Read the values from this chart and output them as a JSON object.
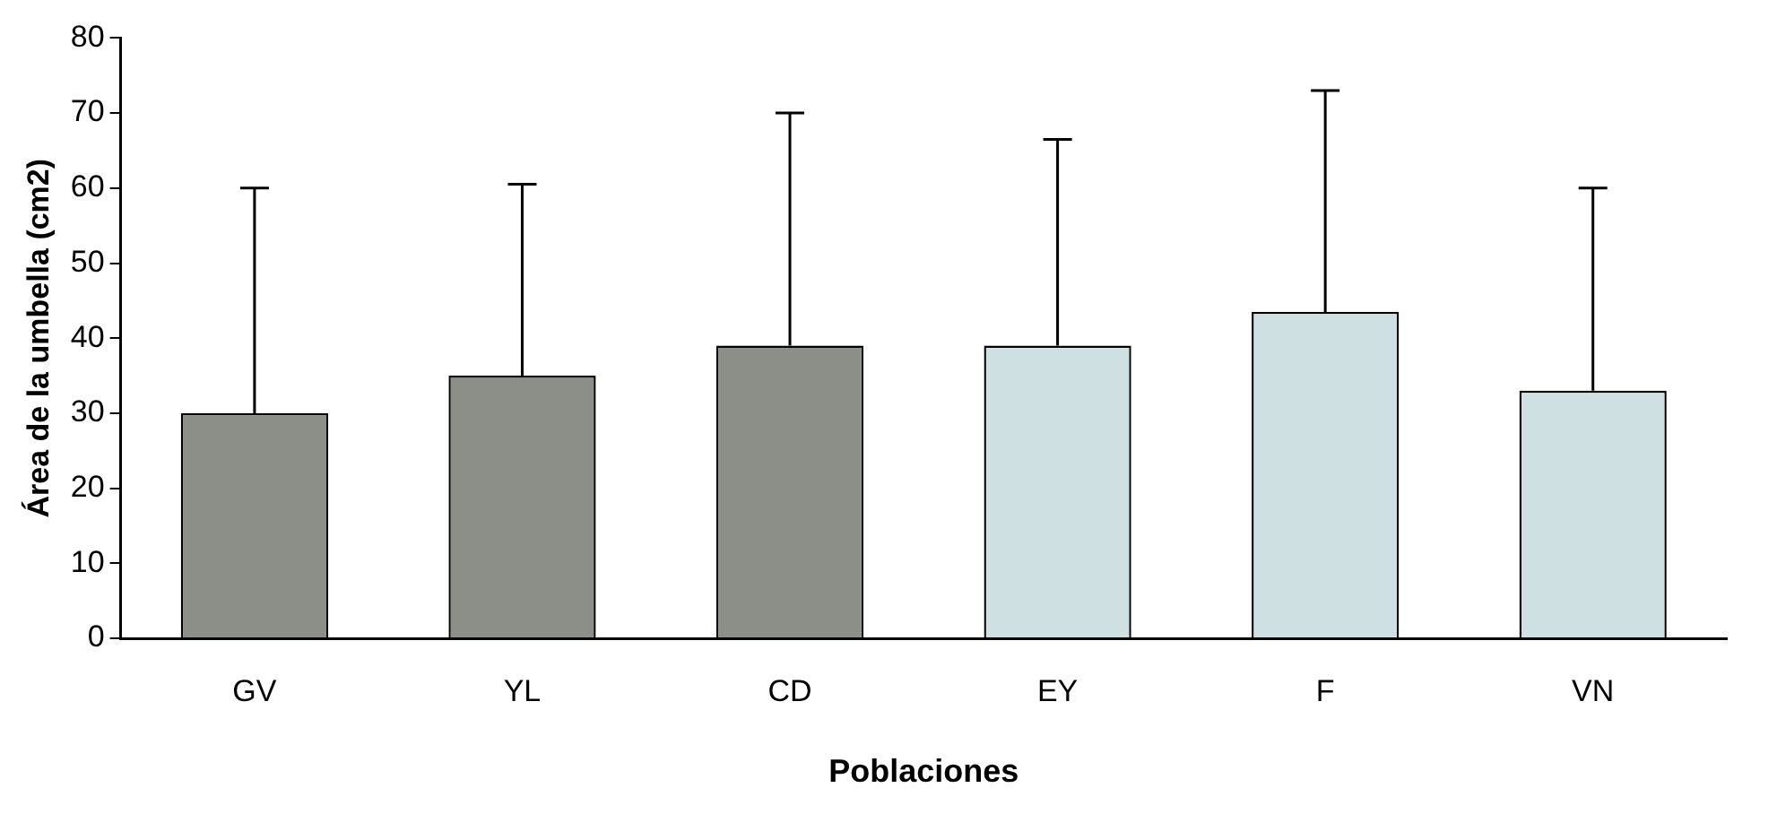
{
  "chart_data": {
    "type": "bar",
    "xlabel": "Poblaciones",
    "ylabel": "Área de la umbella (cm2)",
    "categories": [
      "GV",
      "YL",
      "CD",
      "EY",
      "F",
      "VN"
    ],
    "values": [
      30,
      35,
      39,
      39,
      43.5,
      33
    ],
    "colors": [
      "#8c8f88",
      "#8c8f88",
      "#8c8f88",
      "#cfe0e3",
      "#cfe0e3",
      "#cfe0e3"
    ],
    "errors": [
      [
        30,
        60
      ],
      [
        35,
        60.5
      ],
      [
        39,
        70
      ],
      [
        39,
        66.5
      ],
      [
        43.5,
        73
      ],
      [
        33,
        60
      ]
    ],
    "ylim": [
      0,
      80
    ],
    "yticks": [
      0,
      10,
      20,
      30,
      40,
      50,
      60,
      70,
      80
    ],
    "grid": false,
    "legend": false
  }
}
